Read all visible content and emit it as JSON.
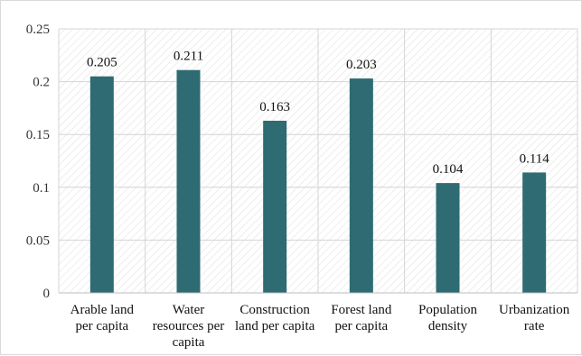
{
  "chart_data": {
    "type": "bar",
    "categories": [
      [
        "Arable land",
        "per capita"
      ],
      [
        "Water",
        "resources per",
        "capita"
      ],
      [
        "Construction",
        "land per capita"
      ],
      [
        "Forest land",
        "per capita"
      ],
      [
        "Population",
        "density"
      ],
      [
        "Urbanization",
        "rate"
      ]
    ],
    "values": [
      0.205,
      0.211,
      0.163,
      0.203,
      0.104,
      0.114
    ],
    "value_labels": [
      "0.205",
      "0.211",
      "0.163",
      "0.203",
      "0.104",
      "0.114"
    ],
    "yticks": [
      "0",
      "0.05",
      "0.1",
      "0.15",
      "0.2",
      "0.25"
    ],
    "ylim": [
      0,
      0.25
    ],
    "grid": true,
    "legend": "none",
    "colors": {
      "bar": "#2e6b73",
      "grid": "#d4d4d4",
      "hatch": "#e2e2e2"
    }
  }
}
